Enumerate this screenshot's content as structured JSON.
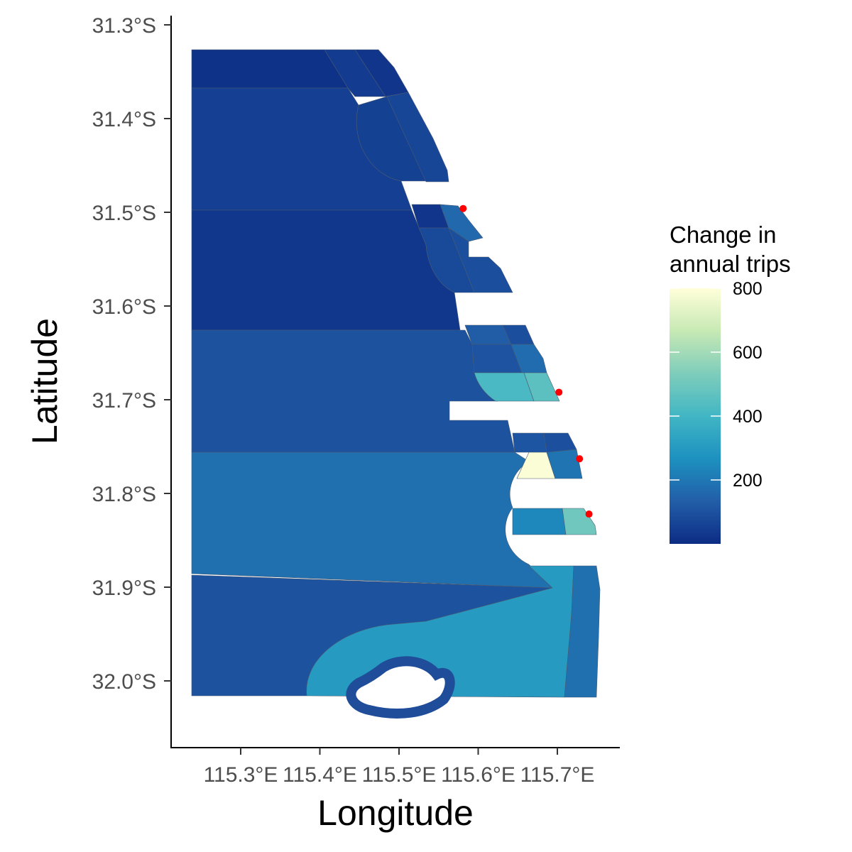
{
  "map": {
    "x_axis_title": "Longitude",
    "y_axis_title": "Latitude",
    "x_ticks": [
      "115.3°E",
      "115.4°E",
      "115.5°E",
      "115.6°E",
      "115.7°E"
    ],
    "y_ticks": [
      "31.3°S",
      "31.4°S",
      "31.5°S",
      "31.6°S",
      "31.7°S",
      "31.8°S",
      "31.9°S",
      "32.0°S"
    ],
    "x_range": [
      115.24,
      115.77
    ],
    "y_range": [
      -32.07,
      -31.29
    ]
  },
  "legend": {
    "title_line1": "Change in",
    "title_line2": "annual trips",
    "labels": [
      "800",
      "600",
      "400",
      "200"
    ],
    "values": [
      800,
      600,
      400,
      200
    ],
    "range": [
      0,
      800
    ],
    "colors": [
      "#0c2c84",
      "#225ea8",
      "#1d91c0",
      "#41b6c4",
      "#7fcdbb",
      "#c7e9b4",
      "#ffffd9"
    ]
  },
  "points": [
    {
      "lon": 115.581,
      "lat": -31.496
    },
    {
      "lon": 115.702,
      "lat": -31.692
    },
    {
      "lon": 115.728,
      "lat": -31.763
    },
    {
      "lon": 115.74,
      "lat": -31.822
    }
  ],
  "zones": [
    {
      "id": "z1",
      "value": 15
    },
    {
      "id": "z2",
      "value": 40
    },
    {
      "id": "z3",
      "value": 25
    },
    {
      "id": "z4",
      "value": 50
    },
    {
      "id": "z5",
      "value": 55
    },
    {
      "id": "z6",
      "value": 70
    },
    {
      "id": "z7",
      "value": 30
    },
    {
      "id": "z8",
      "value": 25
    },
    {
      "id": "z9",
      "value": 160
    },
    {
      "id": "z10",
      "value": 80
    },
    {
      "id": "z11",
      "value": 90
    },
    {
      "id": "z12",
      "value": 100
    },
    {
      "id": "z13",
      "value": 420
    },
    {
      "id": "z14",
      "value": 460
    },
    {
      "id": "z15",
      "value": 130
    },
    {
      "id": "z16",
      "value": 90
    },
    {
      "id": "z17",
      "value": 790
    },
    {
      "id": "z18",
      "value": 190
    },
    {
      "id": "z19",
      "value": 170
    },
    {
      "id": "z20",
      "value": 240
    },
    {
      "id": "z21",
      "value": 500
    },
    {
      "id": "z22",
      "value": 105
    },
    {
      "id": "z23",
      "value": 300
    },
    {
      "id": "z24",
      "value": 180
    }
  ]
}
